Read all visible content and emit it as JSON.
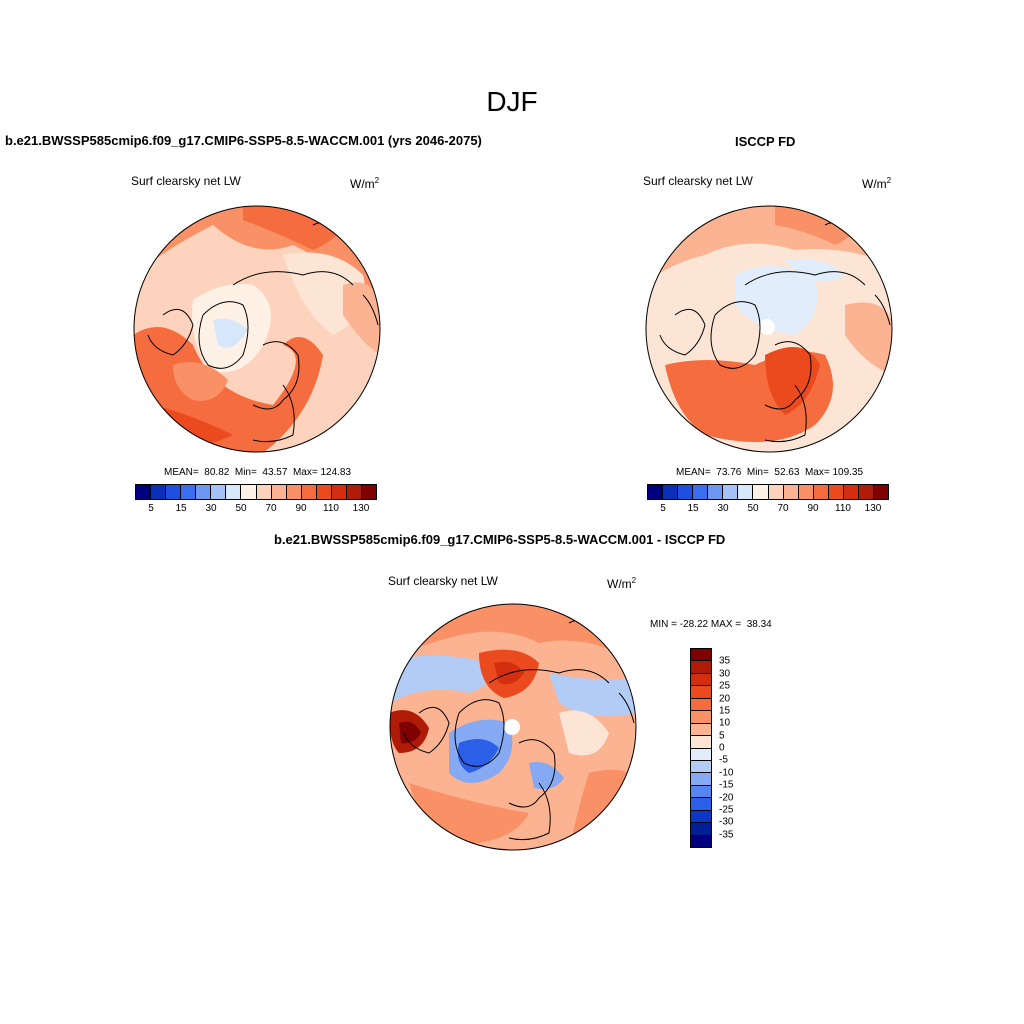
{
  "title": "DJF",
  "panels": {
    "model": {
      "header": "b.e21.BWSSP585cmip6.f09_g17.CMIP6-SSP5-8.5-WACCM.001 (yrs 2046-2075)",
      "variable": "Surf clearsky net LW",
      "units": "W/m",
      "units_sup": "2",
      "stats": "MEAN=  80.82  Min=  43.57  Max= 124.83"
    },
    "obs": {
      "header": "ISCCP FD",
      "variable": "Surf clearsky net LW",
      "units": "W/m",
      "units_sup": "2",
      "stats": "MEAN=  73.76  Min=  52.63  Max= 109.35"
    },
    "diff": {
      "header": "b.e21.BWSSP585cmip6.f09_g17.CMIP6-SSP5-8.5-WACCM.001 - ISCCP FD",
      "variable": "Surf clearsky net LW",
      "units": "W/m",
      "units_sup": "2",
      "stats": "MIN = -28.22 MAX =  38.34"
    }
  },
  "colorbar_abs": {
    "tick_labels": [
      "5",
      "15",
      "30",
      "50",
      "70",
      "90",
      "110",
      "130"
    ],
    "colors": [
      "#00007f",
      "#0a2fb8",
      "#1f4fe0",
      "#3b6ef0",
      "#6d98f2",
      "#a5c3f6",
      "#d7e7fb",
      "#fff1e6",
      "#fdd3bd",
      "#fcb392",
      "#fa9066",
      "#f56c3f",
      "#eb4a1e",
      "#d42e10",
      "#b01b08",
      "#7f0000"
    ]
  },
  "colorbar_diff": {
    "tick_labels": [
      "35",
      "30",
      "25",
      "20",
      "15",
      "10",
      "5",
      "0",
      "-5",
      "-10",
      "-15",
      "-20",
      "-25",
      "-30",
      "-35"
    ],
    "colors": [
      "#7f0000",
      "#b01b08",
      "#d42e10",
      "#eb4a1e",
      "#f56c3f",
      "#fa9066",
      "#fcb392",
      "#fde5d6",
      "#e2edfb",
      "#b3ccf6",
      "#85a9f2",
      "#5585ee",
      "#2b5fe8",
      "#0c36c6",
      "#001f96",
      "#00007f"
    ]
  }
}
